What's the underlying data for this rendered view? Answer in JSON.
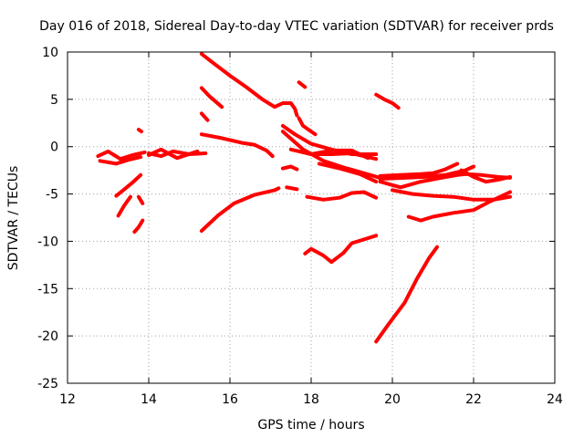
{
  "chart_data": {
    "type": "scatter",
    "title": "Day 016 of 2018, Sidereal Day-to-day VTEC variation (SDTVAR) for receiver prds",
    "xlabel": "GPS time / hours",
    "ylabel": "SDTVAR / TECUs",
    "xlim": [
      12,
      24
    ],
    "ylim": [
      -25,
      10
    ],
    "xticks": [
      12,
      14,
      16,
      18,
      20,
      22,
      24
    ],
    "yticks": [
      -25,
      -20,
      -15,
      -10,
      -5,
      0,
      5,
      10
    ],
    "grid": true,
    "legend": "none",
    "marker_color": "#ff0000",
    "series": [
      {
        "points": [
          [
            12.75,
            -1.0
          ],
          [
            13.0,
            -0.5
          ],
          [
            13.3,
            -1.3
          ],
          [
            13.6,
            -0.9
          ],
          [
            13.9,
            -0.6
          ]
        ]
      },
      {
        "points": [
          [
            12.8,
            -1.5
          ],
          [
            13.2,
            -1.8
          ],
          [
            13.5,
            -1.4
          ],
          [
            13.8,
            -1.1
          ]
        ]
      },
      {
        "points": [
          [
            13.2,
            -5.2
          ],
          [
            13.4,
            -4.5
          ],
          [
            13.6,
            -3.8
          ],
          [
            13.8,
            -3.0
          ]
        ]
      },
      {
        "points": [
          [
            13.25,
            -7.3
          ],
          [
            13.4,
            -6.2
          ],
          [
            13.55,
            -5.3
          ]
        ]
      },
      {
        "points": [
          [
            13.75,
            1.8
          ],
          [
            13.82,
            1.6
          ]
        ]
      },
      {
        "points": [
          [
            13.75,
            -5.3
          ],
          [
            13.85,
            -6.0
          ]
        ]
      },
      {
        "points": [
          [
            13.65,
            -9.0
          ],
          [
            13.75,
            -8.5
          ],
          [
            13.85,
            -7.8
          ]
        ]
      },
      {
        "points": [
          [
            14.0,
            -0.7
          ],
          [
            14.3,
            -1.0
          ],
          [
            14.6,
            -0.5
          ],
          [
            15.0,
            -0.8
          ],
          [
            15.4,
            -0.7
          ]
        ]
      },
      {
        "points": [
          [
            14.0,
            -0.9
          ],
          [
            14.3,
            -0.3
          ],
          [
            14.7,
            -1.2
          ],
          [
            15.2,
            -0.5
          ]
        ]
      },
      {
        "points": [
          [
            15.3,
            9.8
          ],
          [
            15.6,
            8.8
          ],
          [
            16.0,
            7.5
          ],
          [
            16.4,
            6.3
          ],
          [
            16.8,
            5.0
          ],
          [
            17.1,
            4.2
          ],
          [
            17.3,
            4.6
          ],
          [
            17.5,
            4.6
          ],
          [
            17.6,
            4.0
          ],
          [
            17.65,
            3.3
          ]
        ]
      },
      {
        "points": [
          [
            15.3,
            6.2
          ],
          [
            15.5,
            5.3
          ],
          [
            15.8,
            4.2
          ]
        ]
      },
      {
        "points": [
          [
            15.3,
            3.5
          ],
          [
            15.45,
            2.8
          ]
        ]
      },
      {
        "points": [
          [
            15.3,
            1.3
          ],
          [
            15.8,
            0.9
          ],
          [
            16.3,
            0.4
          ],
          [
            16.6,
            0.2
          ],
          [
            16.9,
            -0.4
          ],
          [
            17.05,
            -1.0
          ]
        ]
      },
      {
        "points": [
          [
            15.3,
            -8.9
          ],
          [
            15.7,
            -7.3
          ],
          [
            16.1,
            -6.0
          ],
          [
            16.6,
            -5.1
          ],
          [
            17.1,
            -4.6
          ],
          [
            17.2,
            -4.4
          ]
        ]
      },
      {
        "points": [
          [
            17.3,
            -2.3
          ],
          [
            17.5,
            -2.1
          ],
          [
            17.65,
            -2.4
          ]
        ]
      },
      {
        "points": [
          [
            17.4,
            -4.3
          ],
          [
            17.65,
            -4.5
          ]
        ]
      },
      {
        "points": [
          [
            17.7,
            6.8
          ],
          [
            17.85,
            6.3
          ]
        ]
      },
      {
        "points": [
          [
            17.7,
            3.0
          ],
          [
            17.8,
            2.2
          ],
          [
            18.0,
            1.6
          ],
          [
            18.1,
            1.3
          ]
        ]
      },
      {
        "points": [
          [
            17.3,
            2.2
          ],
          [
            17.6,
            1.3
          ],
          [
            18.0,
            0.3
          ],
          [
            18.5,
            -0.3
          ],
          [
            19.0,
            -0.8
          ],
          [
            19.6,
            -0.8
          ]
        ]
      },
      {
        "points": [
          [
            17.3,
            1.6
          ],
          [
            17.8,
            -0.3
          ],
          [
            18.3,
            -1.5
          ],
          [
            18.8,
            -2.2
          ],
          [
            19.3,
            -2.8
          ],
          [
            19.7,
            -3.3
          ]
        ]
      },
      {
        "points": [
          [
            17.5,
            -0.3
          ],
          [
            18.0,
            -0.8
          ],
          [
            18.5,
            -0.8
          ],
          [
            19.0,
            -0.7
          ],
          [
            19.6,
            -1.3
          ]
        ]
      },
      {
        "points": [
          [
            18.0,
            -0.8
          ],
          [
            18.5,
            -0.4
          ],
          [
            19.0,
            -0.4
          ],
          [
            19.4,
            -1.2
          ]
        ]
      },
      {
        "points": [
          [
            18.2,
            -1.8
          ],
          [
            18.7,
            -2.3
          ],
          [
            19.2,
            -2.9
          ],
          [
            19.6,
            -3.7
          ]
        ]
      },
      {
        "points": [
          [
            17.9,
            -5.3
          ],
          [
            18.3,
            -5.6
          ],
          [
            18.7,
            -5.4
          ],
          [
            19.0,
            -4.9
          ],
          [
            19.3,
            -4.8
          ],
          [
            19.6,
            -5.4
          ]
        ]
      },
      {
        "points": [
          [
            17.85,
            -11.3
          ],
          [
            18.0,
            -10.8
          ],
          [
            18.3,
            -11.5
          ],
          [
            18.5,
            -12.2
          ],
          [
            18.8,
            -11.2
          ],
          [
            19.0,
            -10.2
          ],
          [
            19.3,
            -9.8
          ],
          [
            19.6,
            -9.4
          ]
        ]
      },
      {
        "points": [
          [
            19.6,
            5.5
          ],
          [
            19.8,
            5.0
          ],
          [
            20.0,
            4.6
          ],
          [
            20.15,
            4.1
          ]
        ]
      },
      {
        "points": [
          [
            19.6,
            -20.6
          ],
          [
            19.9,
            -18.8
          ],
          [
            20.3,
            -16.5
          ],
          [
            20.6,
            -14.0
          ],
          [
            20.9,
            -11.8
          ],
          [
            21.1,
            -10.6
          ]
        ]
      },
      {
        "points": [
          [
            19.7,
            -3.1
          ],
          [
            20.2,
            -3.0
          ],
          [
            20.7,
            -2.9
          ],
          [
            21.0,
            -2.8
          ],
          [
            21.3,
            -2.4
          ],
          [
            21.6,
            -1.8
          ]
        ]
      },
      {
        "points": [
          [
            19.7,
            -3.4
          ],
          [
            20.3,
            -3.3
          ],
          [
            20.8,
            -3.2
          ],
          [
            21.3,
            -3.0
          ],
          [
            21.8,
            -2.5
          ],
          [
            22.0,
            -2.1
          ]
        ]
      },
      {
        "points": [
          [
            19.7,
            -3.7
          ],
          [
            20.2,
            -4.3
          ],
          [
            20.7,
            -3.7
          ],
          [
            21.2,
            -3.3
          ],
          [
            21.6,
            -3.0
          ],
          [
            21.8,
            -2.9
          ],
          [
            22.2,
            -3.0
          ],
          [
            22.6,
            -3.2
          ],
          [
            22.9,
            -3.3
          ]
        ]
      },
      {
        "points": [
          [
            20.0,
            -4.6
          ],
          [
            20.5,
            -5.0
          ],
          [
            21.0,
            -5.2
          ],
          [
            21.5,
            -5.3
          ],
          [
            22.0,
            -5.6
          ],
          [
            22.5,
            -5.6
          ],
          [
            22.9,
            -5.3
          ]
        ]
      },
      {
        "points": [
          [
            20.4,
            -7.4
          ],
          [
            20.7,
            -7.8
          ],
          [
            21.0,
            -7.4
          ],
          [
            21.5,
            -7.0
          ],
          [
            22.0,
            -6.7
          ],
          [
            22.4,
            -5.8
          ],
          [
            22.9,
            -4.8
          ]
        ]
      },
      {
        "points": [
          [
            21.7,
            -2.5
          ],
          [
            22.0,
            -3.2
          ],
          [
            22.3,
            -3.7
          ],
          [
            22.6,
            -3.5
          ],
          [
            22.9,
            -3.2
          ]
        ]
      }
    ]
  }
}
